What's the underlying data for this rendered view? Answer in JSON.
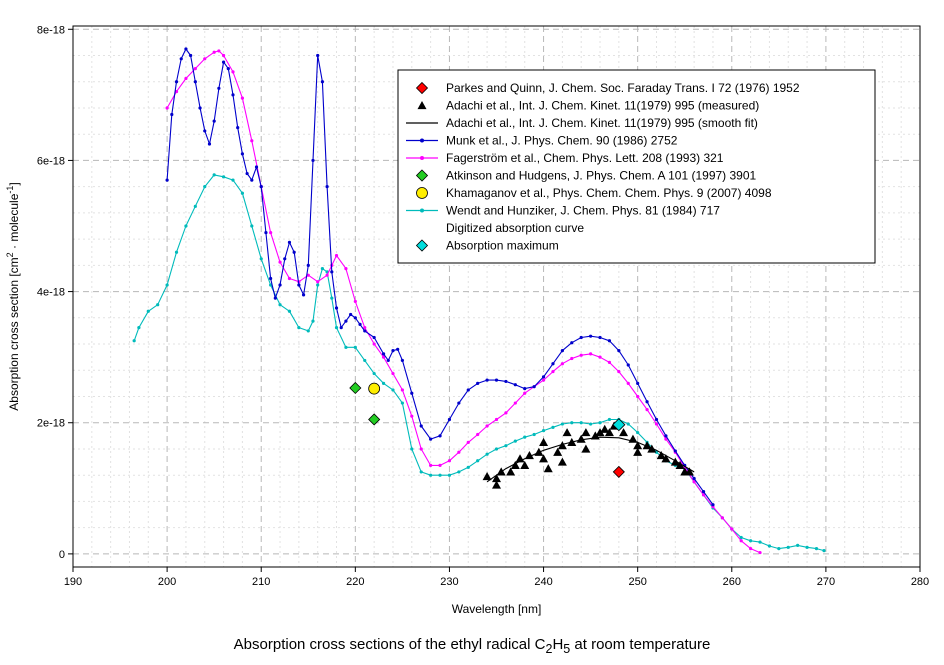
{
  "chart_data": {
    "type": "line",
    "title": "",
    "xlabel": "Wavelength [nm]",
    "ylabel_parts": [
      "Absorption cross section [cm",
      "2",
      " · molecule",
      "-1",
      "]"
    ],
    "xlim": [
      190,
      280
    ],
    "ylim": [
      -0.2,
      8.05
    ],
    "y_scale_label": "e-18",
    "x_ticks": [
      190,
      200,
      210,
      220,
      230,
      240,
      250,
      260,
      270,
      280
    ],
    "x_tick_labels": [
      "190",
      "200",
      "210",
      "220",
      "230",
      "240",
      "250",
      "260",
      "270",
      "280"
    ],
    "y_ticks": [
      0,
      2,
      4,
      6,
      8
    ],
    "y_tick_labels": [
      "0",
      "2e-18",
      "4e-18",
      "6e-18",
      "8e-18"
    ],
    "grid": true,
    "series": [
      {
        "name": "Parkes and Quinn, J. Chem. Soc. Faraday Trans. I 72 (1976) 1952",
        "style": "marker",
        "marker": "diamond",
        "color": "#ff0000",
        "points": [
          [
            248,
            1.25
          ]
        ]
      },
      {
        "name": "Adachi et al., Int. J. Chem. Kinet. 11(1979) 995 (measured)",
        "style": "marker",
        "marker": "triangle",
        "color": "#000000",
        "points": [
          [
            234,
            1.18
          ],
          [
            235,
            1.05
          ],
          [
            235,
            1.15
          ],
          [
            235.5,
            1.25
          ],
          [
            236.5,
            1.25
          ],
          [
            237,
            1.35
          ],
          [
            237.5,
            1.45
          ],
          [
            238,
            1.35
          ],
          [
            238.5,
            1.5
          ],
          [
            239.5,
            1.55
          ],
          [
            240,
            1.7
          ],
          [
            240,
            1.45
          ],
          [
            240.5,
            1.3
          ],
          [
            241.5,
            1.55
          ],
          [
            242,
            1.65
          ],
          [
            242,
            1.4
          ],
          [
            242.5,
            1.85
          ],
          [
            243,
            1.7
          ],
          [
            244,
            1.75
          ],
          [
            244.5,
            1.6
          ],
          [
            244.5,
            1.85
          ],
          [
            245.5,
            1.8
          ],
          [
            246,
            1.85
          ],
          [
            246.5,
            1.9
          ],
          [
            247,
            1.85
          ],
          [
            247.5,
            1.95
          ],
          [
            248.5,
            1.85
          ],
          [
            249.5,
            1.75
          ],
          [
            250,
            1.65
          ],
          [
            250,
            1.55
          ],
          [
            251,
            1.65
          ],
          [
            251.5,
            1.6
          ],
          [
            252.5,
            1.5
          ],
          [
            253,
            1.45
          ],
          [
            254,
            1.4
          ],
          [
            254.5,
            1.35
          ],
          [
            255,
            1.25
          ],
          [
            255.5,
            1.25
          ]
        ]
      },
      {
        "name": "Adachi et al., Int. J. Chem. Kinet. 11(1979) 995 (smooth fit)",
        "style": "line",
        "color": "#000000",
        "points": [
          [
            234,
            1.1
          ],
          [
            236,
            1.3
          ],
          [
            238,
            1.45
          ],
          [
            240,
            1.58
          ],
          [
            242,
            1.67
          ],
          [
            244,
            1.74
          ],
          [
            246,
            1.78
          ],
          [
            248,
            1.77
          ],
          [
            250,
            1.7
          ],
          [
            252,
            1.58
          ],
          [
            254,
            1.42
          ],
          [
            256,
            1.25
          ]
        ]
      },
      {
        "name": "Munk et al., J. Phys. Chem. 90 (1986) 2752",
        "style": "line-marker",
        "color": "#0000cc",
        "points": [
          [
            200,
            5.7
          ],
          [
            200.5,
            6.7
          ],
          [
            201,
            7.2
          ],
          [
            201.5,
            7.55
          ],
          [
            202,
            7.7
          ],
          [
            202.5,
            7.6
          ],
          [
            203,
            7.2
          ],
          [
            203.5,
            6.8
          ],
          [
            204,
            6.45
          ],
          [
            204.5,
            6.25
          ],
          [
            205,
            6.6
          ],
          [
            205.5,
            7.1
          ],
          [
            206,
            7.5
          ],
          [
            206.5,
            7.4
          ],
          [
            207,
            7.0
          ],
          [
            207.5,
            6.5
          ],
          [
            208,
            6.1
          ],
          [
            208.5,
            5.8
          ],
          [
            209,
            5.7
          ],
          [
            209.5,
            5.9
          ],
          [
            210,
            5.6
          ],
          [
            210.5,
            4.9
          ],
          [
            211,
            4.2
          ],
          [
            211.5,
            3.9
          ],
          [
            212,
            4.1
          ],
          [
            212.5,
            4.5
          ],
          [
            213,
            4.75
          ],
          [
            213.5,
            4.6
          ],
          [
            214,
            4.1
          ],
          [
            214.5,
            3.95
          ],
          [
            215,
            4.4
          ],
          [
            215.5,
            6.0
          ],
          [
            216,
            7.6
          ],
          [
            216.5,
            7.2
          ],
          [
            217,
            5.6
          ],
          [
            217.5,
            4.3
          ],
          [
            218,
            3.75
          ],
          [
            218.5,
            3.45
          ],
          [
            219,
            3.55
          ],
          [
            219.5,
            3.65
          ],
          [
            220,
            3.6
          ],
          [
            220.5,
            3.5
          ],
          [
            221,
            3.4
          ],
          [
            222,
            3.3
          ],
          [
            223,
            3.05
          ],
          [
            223.5,
            2.95
          ],
          [
            224,
            3.1
          ],
          [
            224.5,
            3.12
          ],
          [
            225,
            2.95
          ],
          [
            226,
            2.45
          ],
          [
            227,
            1.95
          ],
          [
            228,
            1.75
          ],
          [
            229,
            1.8
          ],
          [
            230,
            2.05
          ],
          [
            231,
            2.3
          ],
          [
            232,
            2.5
          ],
          [
            233,
            2.6
          ],
          [
            234,
            2.65
          ],
          [
            235,
            2.65
          ],
          [
            236,
            2.63
          ],
          [
            237,
            2.58
          ],
          [
            238,
            2.52
          ],
          [
            239,
            2.55
          ],
          [
            240,
            2.7
          ],
          [
            241,
            2.9
          ],
          [
            242,
            3.1
          ],
          [
            243,
            3.22
          ],
          [
            244,
            3.3
          ],
          [
            245,
            3.32
          ],
          [
            246,
            3.3
          ],
          [
            247,
            3.25
          ],
          [
            248,
            3.1
          ],
          [
            249,
            2.88
          ],
          [
            250,
            2.6
          ],
          [
            251,
            2.32
          ],
          [
            252,
            2.05
          ],
          [
            253,
            1.8
          ],
          [
            254,
            1.57
          ],
          [
            255,
            1.35
          ],
          [
            256,
            1.15
          ],
          [
            257,
            0.95
          ],
          [
            258,
            0.75
          ]
        ]
      },
      {
        "name": "Fagerström et al.,  Chem. Phys. Lett. 208 (1993) 321",
        "style": "line-marker",
        "color": "#ff00ff",
        "points": [
          [
            200,
            6.8
          ],
          [
            201,
            7.05
          ],
          [
            202,
            7.25
          ],
          [
            203,
            7.4
          ],
          [
            204,
            7.55
          ],
          [
            205,
            7.65
          ],
          [
            205.5,
            7.67
          ],
          [
            206,
            7.6
          ],
          [
            207,
            7.35
          ],
          [
            208,
            6.95
          ],
          [
            209,
            6.3
          ],
          [
            210,
            5.6
          ],
          [
            211,
            4.9
          ],
          [
            212,
            4.45
          ],
          [
            213,
            4.2
          ],
          [
            214,
            4.15
          ],
          [
            215,
            4.25
          ],
          [
            216,
            4.15
          ],
          [
            217,
            4.25
          ],
          [
            217.5,
            4.4
          ],
          [
            218,
            4.55
          ],
          [
            219,
            4.35
          ],
          [
            220,
            3.85
          ],
          [
            221,
            3.45
          ],
          [
            222,
            3.2
          ],
          [
            223,
            3.0
          ],
          [
            224,
            2.75
          ],
          [
            225,
            2.5
          ],
          [
            226,
            2.1
          ],
          [
            227,
            1.6
          ],
          [
            228,
            1.35
          ],
          [
            229,
            1.35
          ],
          [
            230,
            1.42
          ],
          [
            231,
            1.55
          ],
          [
            232,
            1.7
          ],
          [
            233,
            1.82
          ],
          [
            234,
            1.95
          ],
          [
            235,
            2.05
          ],
          [
            236,
            2.15
          ],
          [
            237,
            2.3
          ],
          [
            238,
            2.45
          ],
          [
            239,
            2.55
          ],
          [
            240,
            2.65
          ],
          [
            241,
            2.78
          ],
          [
            242,
            2.9
          ],
          [
            243,
            2.98
          ],
          [
            244,
            3.03
          ],
          [
            245,
            3.05
          ],
          [
            246,
            3.0
          ],
          [
            247,
            2.92
          ],
          [
            248,
            2.78
          ],
          [
            249,
            2.6
          ],
          [
            250,
            2.4
          ],
          [
            251,
            2.2
          ],
          [
            252,
            1.98
          ],
          [
            253,
            1.75
          ],
          [
            254,
            1.55
          ],
          [
            255,
            1.32
          ],
          [
            256,
            1.1
          ],
          [
            257,
            0.9
          ],
          [
            258,
            0.72
          ],
          [
            259,
            0.55
          ],
          [
            260,
            0.38
          ],
          [
            261,
            0.2
          ],
          [
            262,
            0.08
          ],
          [
            263,
            0.02
          ]
        ]
      },
      {
        "name": "Atkinson and Hudgens, J. Phys. Chem. A 101 (1997) 3901",
        "style": "marker",
        "marker": "diamond",
        "color": "#22cc22",
        "points": [
          [
            220,
            2.53
          ],
          [
            222,
            2.05
          ]
        ]
      },
      {
        "name": "Khamaganov et al., Phys. Chem. Chem. Phys. 9 (2007) 4098",
        "style": "marker",
        "marker": "circle",
        "color": "#ffee00",
        "points": [
          [
            222,
            2.52
          ]
        ]
      },
      {
        "name": "Wendt and Hunziker, J. Chem. Phys. 81 (1984) 717",
        "style": "line-marker",
        "color": "#00bbbb",
        "points": [
          [
            196.5,
            3.25
          ],
          [
            197,
            3.45
          ],
          [
            198,
            3.7
          ],
          [
            199,
            3.8
          ],
          [
            200,
            4.1
          ],
          [
            201,
            4.6
          ],
          [
            202,
            5.0
          ],
          [
            203,
            5.3
          ],
          [
            204,
            5.6
          ],
          [
            205,
            5.78
          ],
          [
            206,
            5.75
          ],
          [
            207,
            5.7
          ],
          [
            208,
            5.5
          ],
          [
            209,
            5.0
          ],
          [
            210,
            4.5
          ],
          [
            211,
            4.1
          ],
          [
            212,
            3.8
          ],
          [
            213,
            3.7
          ],
          [
            214,
            3.45
          ],
          [
            215,
            3.4
          ],
          [
            215.5,
            3.55
          ],
          [
            216,
            4.1
          ],
          [
            216.5,
            4.35
          ],
          [
            217,
            4.3
          ],
          [
            217.5,
            3.9
          ],
          [
            218,
            3.45
          ],
          [
            219,
            3.15
          ],
          [
            220,
            3.15
          ],
          [
            221,
            2.95
          ],
          [
            222,
            2.75
          ],
          [
            223,
            2.6
          ],
          [
            224,
            2.5
          ],
          [
            225,
            2.3
          ],
          [
            226,
            1.6
          ],
          [
            227,
            1.25
          ],
          [
            228,
            1.2
          ],
          [
            229,
            1.2
          ],
          [
            230,
            1.2
          ],
          [
            231,
            1.25
          ],
          [
            232,
            1.32
          ],
          [
            233,
            1.42
          ],
          [
            234,
            1.52
          ],
          [
            235,
            1.6
          ],
          [
            236,
            1.65
          ],
          [
            237,
            1.72
          ],
          [
            238,
            1.78
          ],
          [
            239,
            1.82
          ],
          [
            240,
            1.88
          ],
          [
            241,
            1.93
          ],
          [
            242,
            1.98
          ],
          [
            243,
            2.0
          ],
          [
            244,
            2.0
          ],
          [
            245,
            1.98
          ],
          [
            246,
            2.0
          ],
          [
            247,
            2.05
          ],
          [
            248,
            2.05
          ],
          [
            249,
            1.98
          ],
          [
            250,
            1.85
          ],
          [
            251,
            1.7
          ],
          [
            252,
            1.55
          ],
          [
            253,
            1.42
          ],
          [
            254,
            1.35
          ],
          [
            255,
            1.3
          ],
          [
            256,
            1.1
          ],
          [
            257,
            0.9
          ],
          [
            258,
            0.7
          ],
          [
            259,
            0.55
          ],
          [
            260,
            0.38
          ],
          [
            261,
            0.25
          ],
          [
            262,
            0.2
          ],
          [
            263,
            0.18
          ],
          [
            264,
            0.12
          ],
          [
            265,
            0.08
          ],
          [
            266,
            0.1
          ],
          [
            267,
            0.13
          ],
          [
            268,
            0.1
          ],
          [
            269,
            0.08
          ],
          [
            269.8,
            0.05
          ]
        ]
      }
    ],
    "extra_legend": [
      {
        "name": "Digitized absorption curve",
        "style": "none",
        "color": "#000000"
      },
      {
        "name": "Absorption maximum",
        "style": "marker",
        "marker": "diamond",
        "color": "#00dddd",
        "points": [
          [
            248,
            1.97
          ]
        ]
      }
    ],
    "legend_position": "top-right",
    "caption_parts": [
      "Absorption cross sections of the ethyl radical C",
      "2",
      "H",
      "5",
      " at room temperature"
    ]
  }
}
